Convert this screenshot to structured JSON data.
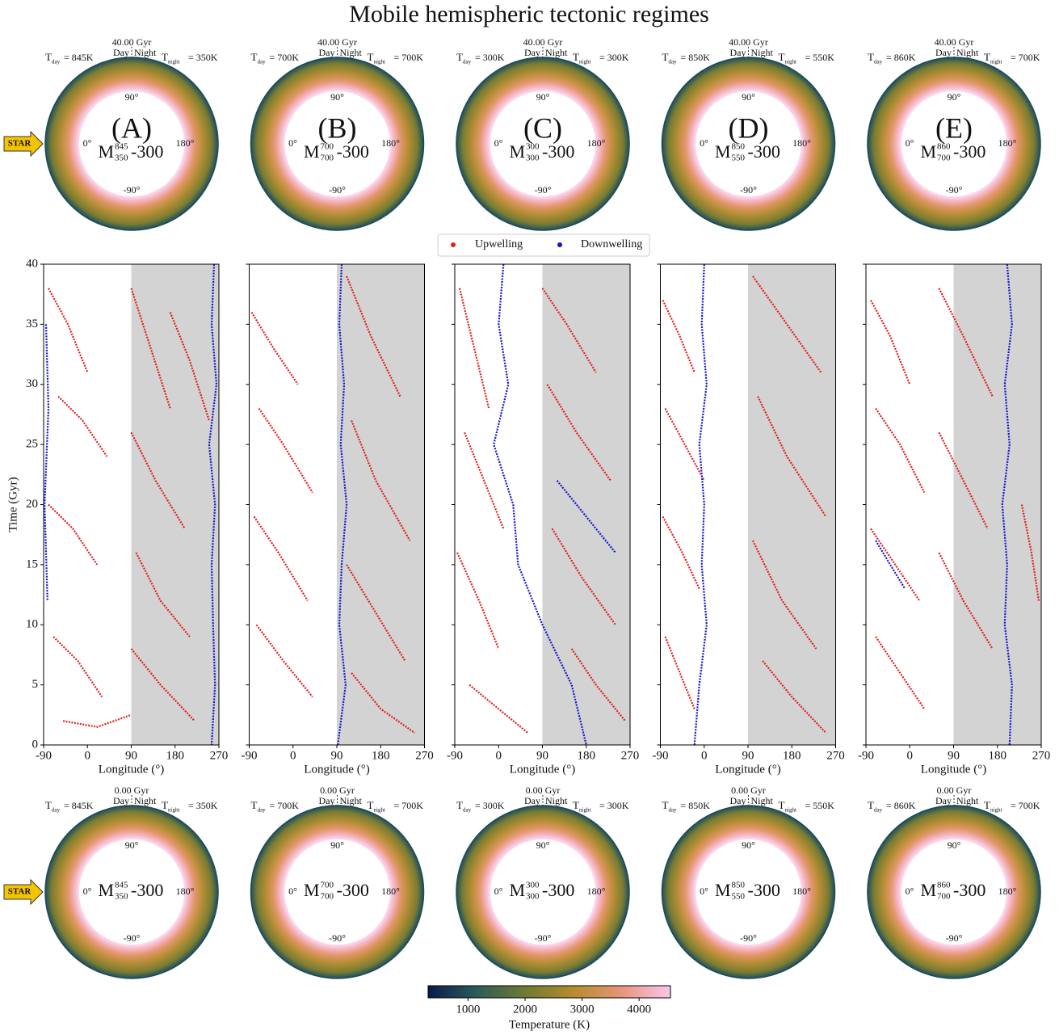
{
  "title": "Mobile hemispheric tectonic regimes",
  "angles": [
    "90°",
    "0°",
    "180°",
    "-90°"
  ],
  "day": "Day",
  "night": "Night",
  "t_symbol": "T",
  "day_sub": "day",
  "night_sub": "night",
  "star": "STAR",
  "snapshots": [
    {
      "label": "(A)",
      "model": {
        "main": "M",
        "sup": "845",
        "sub": "350",
        "suffix": "-300"
      },
      "t_day": "= 845K",
      "t_night": "= 350K",
      "top_time": "40.00 Gyr",
      "bottom_time": "0.00 Gyr"
    },
    {
      "label": "(B)",
      "model": {
        "main": "M",
        "sup": "700",
        "sub": "700",
        "suffix": "-300"
      },
      "t_day": "= 700K",
      "t_night": "= 700K",
      "top_time": "40.00 Gyr",
      "bottom_time": "0.00 Gyr"
    },
    {
      "label": "(C)",
      "model": {
        "main": "M",
        "sup": "300",
        "sub": "300",
        "suffix": "-300"
      },
      "t_day": "= 300K",
      "t_night": "= 300K",
      "top_time": "40.00 Gyr",
      "bottom_time": "0.00 Gyr"
    },
    {
      "label": "(D)",
      "model": {
        "main": "M",
        "sup": "850",
        "sub": "550",
        "suffix": "-300"
      },
      "t_day": "= 850K",
      "t_night": "= 550K",
      "top_time": "40.00 Gyr",
      "bottom_time": "0.00 Gyr"
    },
    {
      "label": "(E)",
      "model": {
        "main": "M",
        "sup": "860",
        "sub": "700",
        "suffix": "-300"
      },
      "t_day": "= 860K",
      "t_night": "= 700K",
      "top_time": "40.00 Gyr",
      "bottom_time": "0.00 Gyr"
    }
  ],
  "colorbar": {
    "label": "Temperature (K)",
    "lim": [
      300,
      4550
    ],
    "ticks": [
      1000,
      2000,
      3000,
      4000
    ],
    "colors": [
      "#0a1a4c",
      "#2b5c5a",
      "#6f7a34",
      "#b48c2e",
      "#e8957a",
      "#fac6ee"
    ]
  },
  "chart_data": [
    {
      "type": "scatter",
      "xlabel": "Longitude (°)",
      "ylabel": "Time (Gyr)",
      "xlim": [
        -90,
        270
      ],
      "ylim": [
        0,
        40
      ],
      "xticks": [
        -90,
        0,
        90,
        180,
        270
      ],
      "yticks": [
        0,
        5,
        10,
        15,
        20,
        25,
        30,
        35,
        40
      ],
      "show_ytick_labels": true,
      "shade_x": [
        90,
        270
      ],
      "series": [
        {
          "name": "Upwelling",
          "color": "#e0201e",
          "tracks": [
            {
              "x": [
                -80,
                -40,
                0
              ],
              "y": [
                38,
                35,
                31
              ]
            },
            {
              "x": [
                90,
                130,
                170
              ],
              "y": [
                38,
                33,
                28
              ]
            },
            {
              "x": [
                -60,
                -10,
                40
              ],
              "y": [
                29,
                27,
                24
              ]
            },
            {
              "x": [
                90,
                140,
                200
              ],
              "y": [
                26,
                22,
                18
              ]
            },
            {
              "x": [
                -80,
                -30,
                20
              ],
              "y": [
                20,
                18,
                15
              ]
            },
            {
              "x": [
                100,
                150,
                210
              ],
              "y": [
                16,
                12,
                9
              ]
            },
            {
              "x": [
                -70,
                -20,
                30
              ],
              "y": [
                9,
                7,
                4
              ]
            },
            {
              "x": [
                90,
                150,
                220
              ],
              "y": [
                8,
                5,
                2
              ]
            },
            {
              "x": [
                170,
                210,
                250
              ],
              "y": [
                36,
                32,
                27
              ]
            },
            {
              "x": [
                -50,
                20,
                90
              ],
              "y": [
                2,
                1.5,
                2.5
              ]
            }
          ]
        },
        {
          "name": "Downwelling",
          "color": "#1515cc",
          "tracks": [
            {
              "x": [
                260,
                255,
                265,
                250,
                262,
                255,
                258,
                262,
                255
              ],
              "y": [
                40,
                35,
                30,
                25,
                20,
                15,
                10,
                5,
                0
              ]
            },
            {
              "x": [
                -85,
                -80,
                -88,
                -82
              ],
              "y": [
                35,
                28,
                20,
                12
              ]
            }
          ]
        }
      ]
    },
    {
      "type": "scatter",
      "xlabel": "Longitude (°)",
      "xlim": [
        -90,
        270
      ],
      "ylim": [
        0,
        40
      ],
      "xticks": [
        -90,
        0,
        90,
        180,
        270
      ],
      "yticks": [
        0,
        5,
        10,
        15,
        20,
        25,
        30,
        35,
        40
      ],
      "show_ytick_labels": false,
      "shade_x": [
        90,
        270
      ],
      "series": [
        {
          "name": "Upwelling",
          "color": "#e0201e",
          "tracks": [
            {
              "x": [
                -85,
                -40,
                10
              ],
              "y": [
                36,
                33,
                30
              ]
            },
            {
              "x": [
                110,
                160,
                220
              ],
              "y": [
                39,
                34,
                29
              ]
            },
            {
              "x": [
                -70,
                -20,
                40
              ],
              "y": [
                28,
                25,
                21
              ]
            },
            {
              "x": [
                120,
                170,
                240
              ],
              "y": [
                27,
                22,
                17
              ]
            },
            {
              "x": [
                -80,
                -30,
                30
              ],
              "y": [
                19,
                16,
                12
              ]
            },
            {
              "x": [
                110,
                170,
                230
              ],
              "y": [
                15,
                11,
                7
              ]
            },
            {
              "x": [
                -75,
                -20,
                40
              ],
              "y": [
                10,
                7,
                4
              ]
            },
            {
              "x": [
                120,
                180,
                250
              ],
              "y": [
                6,
                3,
                1
              ]
            }
          ]
        },
        {
          "name": "Downwelling",
          "color": "#1515cc",
          "tracks": [
            {
              "x": [
                100,
                95,
                105,
                98,
                110,
                100,
                95,
                108,
                92
              ],
              "y": [
                40,
                35,
                30,
                25,
                20,
                15,
                10,
                5,
                0
              ]
            }
          ]
        }
      ]
    },
    {
      "type": "scatter",
      "xlabel": "Longitude (°)",
      "xlim": [
        -90,
        270
      ],
      "ylim": [
        0,
        40
      ],
      "xticks": [
        -90,
        0,
        90,
        180,
        270
      ],
      "yticks": [
        0,
        5,
        10,
        15,
        20,
        25,
        30,
        35,
        40
      ],
      "show_ytick_labels": false,
      "shade_x": [
        90,
        270
      ],
      "series": [
        {
          "name": "Upwelling",
          "color": "#e0201e",
          "tracks": [
            {
              "x": [
                -80,
                -50,
                -20
              ],
              "y": [
                38,
                33,
                28
              ]
            },
            {
              "x": [
                90,
                140,
                200
              ],
              "y": [
                38,
                35,
                31
              ]
            },
            {
              "x": [
                -70,
                -30,
                10
              ],
              "y": [
                26,
                22,
                18
              ]
            },
            {
              "x": [
                100,
                160,
                230
              ],
              "y": [
                30,
                26,
                22
              ]
            },
            {
              "x": [
                -85,
                -40,
                0
              ],
              "y": [
                16,
                12,
                8
              ]
            },
            {
              "x": [
                110,
                170,
                240
              ],
              "y": [
                18,
                14,
                10
              ]
            },
            {
              "x": [
                -60,
                0,
                60
              ],
              "y": [
                5,
                3,
                1
              ]
            },
            {
              "x": [
                150,
                200,
                260
              ],
              "y": [
                8,
                5,
                2
              ]
            }
          ]
        },
        {
          "name": "Downwelling",
          "color": "#1515cc",
          "tracks": [
            {
              "x": [
                10,
                0,
                20,
                -10,
                30,
                40,
                90,
                150,
                180
              ],
              "y": [
                40,
                35,
                30,
                25,
                20,
                15,
                10,
                5,
                0
              ]
            },
            {
              "x": [
                120,
                160,
                200,
                240
              ],
              "y": [
                22,
                20,
                18,
                16
              ]
            }
          ]
        }
      ]
    },
    {
      "type": "scatter",
      "xlabel": "Longitude (°)",
      "xlim": [
        -90,
        270
      ],
      "ylim": [
        0,
        40
      ],
      "xticks": [
        -90,
        0,
        90,
        180,
        270
      ],
      "yticks": [
        0,
        5,
        10,
        15,
        20,
        25,
        30,
        35,
        40
      ],
      "show_ytick_labels": false,
      "shade_x": [
        90,
        270
      ],
      "series": [
        {
          "name": "Upwelling",
          "color": "#e0201e",
          "tracks": [
            {
              "x": [
                -85,
                -50,
                -20
              ],
              "y": [
                37,
                34,
                31
              ]
            },
            {
              "x": [
                100,
                170,
                240
              ],
              "y": [
                39,
                35,
                31
              ]
            },
            {
              "x": [
                -80,
                -40,
                0
              ],
              "y": [
                28,
                25,
                22
              ]
            },
            {
              "x": [
                110,
                170,
                250
              ],
              "y": [
                29,
                24,
                19
              ]
            },
            {
              "x": [
                -85,
                -45,
                -10
              ],
              "y": [
                19,
                16,
                13
              ]
            },
            {
              "x": [
                100,
                160,
                230
              ],
              "y": [
                17,
                12,
                8
              ]
            },
            {
              "x": [
                -80,
                -50,
                -20
              ],
              "y": [
                9,
                6,
                3
              ]
            },
            {
              "x": [
                120,
                180,
                250
              ],
              "y": [
                7,
                4,
                1
              ]
            }
          ]
        },
        {
          "name": "Downwelling",
          "color": "#1515cc",
          "tracks": [
            {
              "x": [
                0,
                -5,
                5,
                -10,
                0,
                -5,
                5,
                -10,
                -20
              ],
              "y": [
                40,
                35,
                30,
                25,
                20,
                15,
                10,
                5,
                0
              ]
            }
          ]
        }
      ]
    },
    {
      "type": "scatter",
      "xlabel": "Longitude (°)",
      "xlim": [
        -90,
        270
      ],
      "ylim": [
        0,
        40
      ],
      "xticks": [
        -90,
        0,
        90,
        180,
        270
      ],
      "yticks": [
        0,
        5,
        10,
        15,
        20,
        25,
        30,
        35,
        40
      ],
      "show_ytick_labels": false,
      "shade_x": [
        90,
        270
      ],
      "series": [
        {
          "name": "Upwelling",
          "color": "#e0201e",
          "tracks": [
            {
              "x": [
                -80,
                -40,
                0
              ],
              "y": [
                37,
                34,
                30
              ]
            },
            {
              "x": [
                60,
                110,
                170
              ],
              "y": [
                38,
                34,
                29
              ]
            },
            {
              "x": [
                -70,
                -20,
                30
              ],
              "y": [
                28,
                25,
                21
              ]
            },
            {
              "x": [
                60,
                110,
                160
              ],
              "y": [
                26,
                22,
                18
              ]
            },
            {
              "x": [
                -80,
                -30,
                20
              ],
              "y": [
                18,
                15,
                12
              ]
            },
            {
              "x": [
                60,
                110,
                170
              ],
              "y": [
                16,
                12,
                8
              ]
            },
            {
              "x": [
                -70,
                -20,
                30
              ],
              "y": [
                9,
                6,
                3
              ]
            },
            {
              "x": [
                230,
                250,
                265
              ],
              "y": [
                20,
                16,
                12
              ]
            }
          ]
        },
        {
          "name": "Downwelling",
          "color": "#1515cc",
          "tracks": [
            {
              "x": [
                200,
                210,
                195,
                205,
                190,
                200,
                195,
                210,
                205
              ],
              "y": [
                40,
                35,
                30,
                25,
                20,
                15,
                10,
                5,
                0
              ]
            },
            {
              "x": [
                -70,
                -40,
                -10
              ],
              "y": [
                17,
                15,
                13
              ]
            }
          ]
        }
      ]
    }
  ]
}
